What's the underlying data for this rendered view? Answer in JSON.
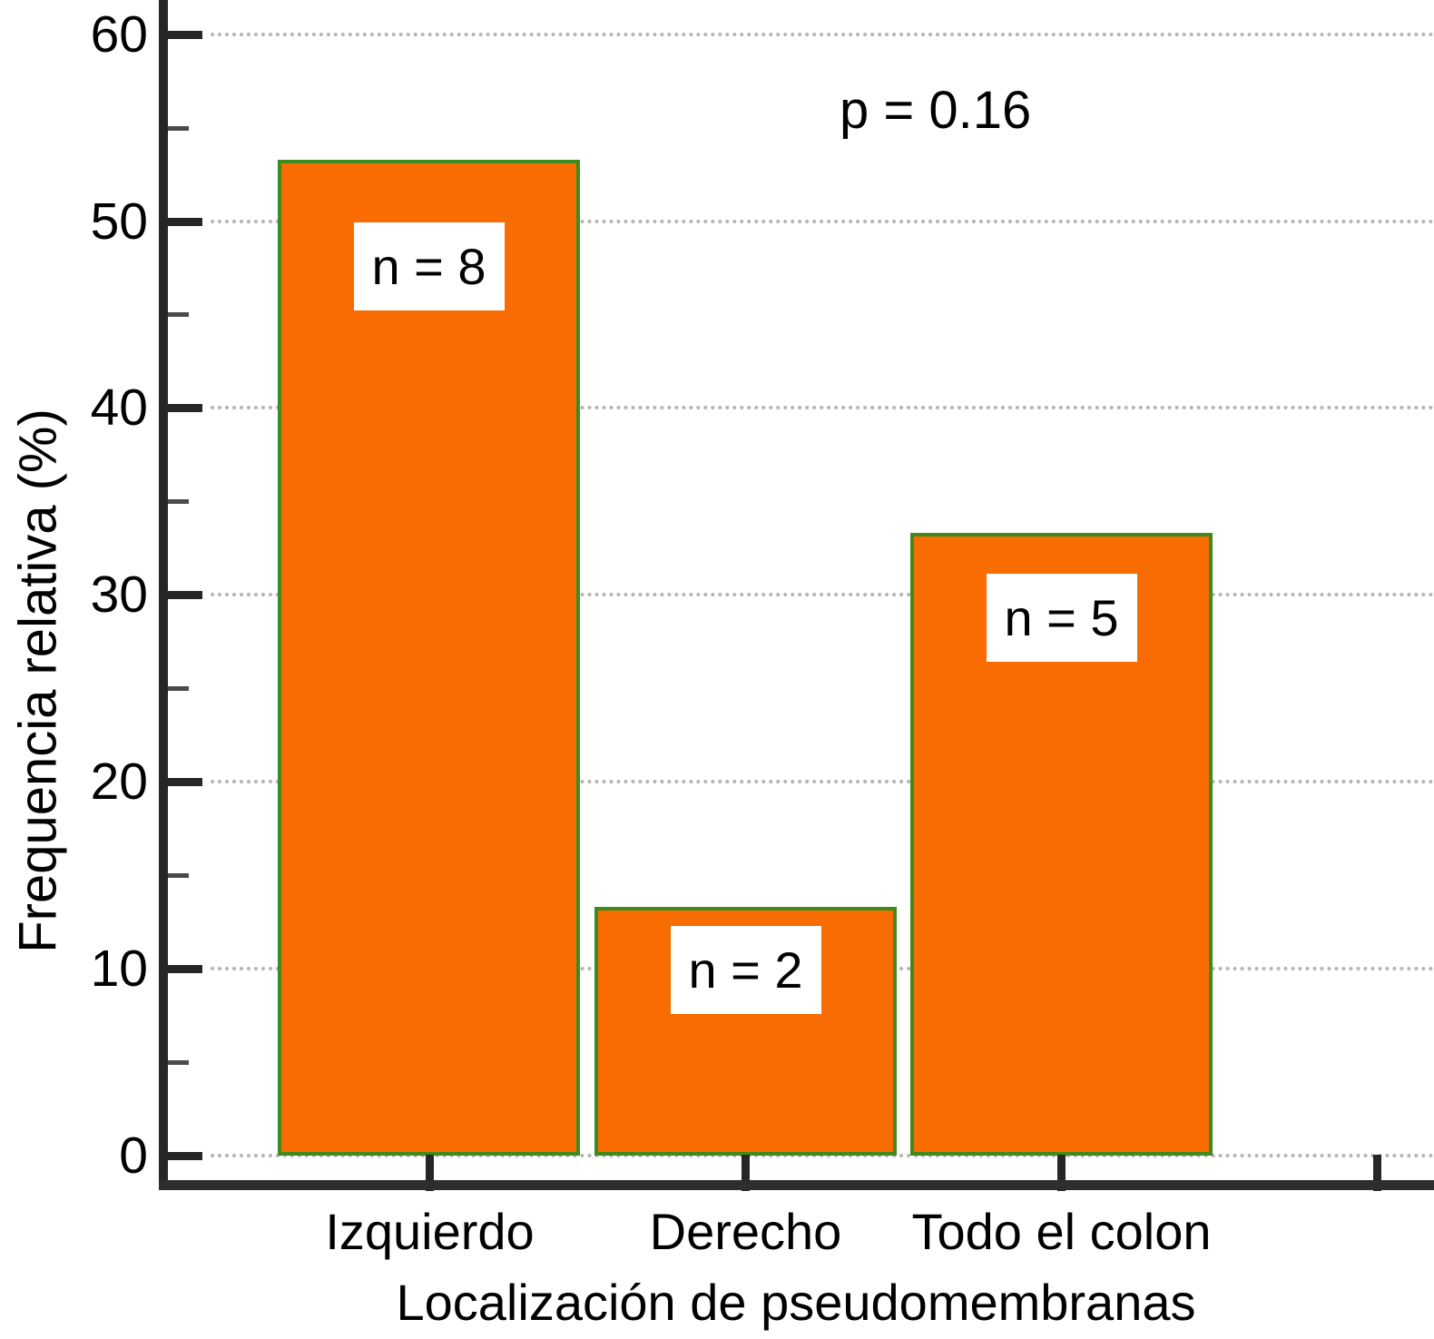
{
  "chart_data": {
    "type": "bar",
    "title": "",
    "xlabel": "Localización de pseudomembranas",
    "ylabel": "Frequencia relativa (%)",
    "categories": [
      "Izquierdo",
      "Derecho",
      "Todo el colon"
    ],
    "values": [
      53.3,
      13.3,
      33.3
    ],
    "counts": [
      8,
      2,
      5
    ],
    "bar_labels": [
      "n = 8",
      "n = 2",
      "n = 5"
    ],
    "annotation": "p = 0.16",
    "ylim": [
      0,
      60
    ],
    "yticks": [
      0,
      10,
      20,
      30,
      40,
      50,
      60
    ],
    "yminorticks": [
      5,
      15,
      25,
      35,
      45,
      55
    ],
    "grid": "horizontal dotted gridlines at major ticks",
    "legend": "none",
    "colors": {
      "bar_fill": "#f96c01",
      "bar_border": "#3e8a1e",
      "axis": "#262626",
      "grid": "#b4b4b4",
      "label_box_bg": "#ffffff",
      "text": "#000000"
    }
  }
}
